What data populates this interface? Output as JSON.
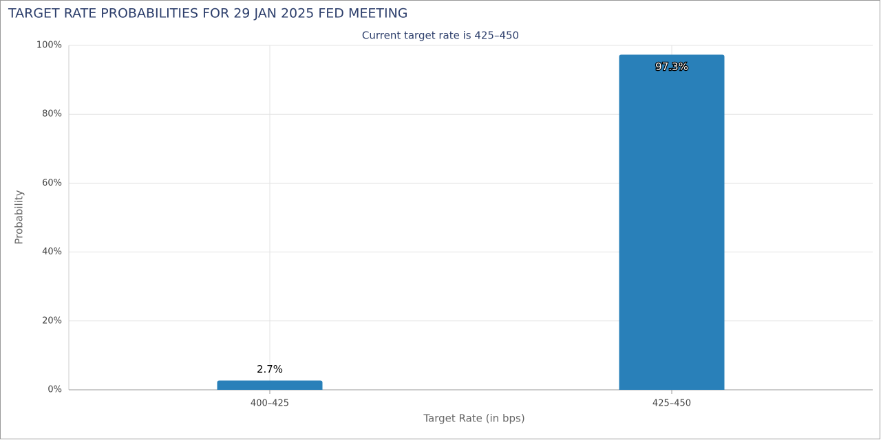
{
  "chart_data": {
    "type": "bar",
    "title": "TARGET RATE PROBABILITIES FOR 29 JAN 2025 FED MEETING",
    "subtitle": "Current target rate is 425–450",
    "x_label": "Target Rate (in bps)",
    "y_label": "Probability",
    "categories": [
      "400–425",
      "425–450"
    ],
    "values": [
      2.7,
      97.3
    ],
    "value_labels": [
      "2.7%",
      "97.3%"
    ],
    "color": "#2980b9",
    "ylim": [
      0,
      100
    ],
    "yticks": [
      {
        "value": 0,
        "label": "0%"
      },
      {
        "value": 20,
        "label": "20%"
      },
      {
        "value": 40,
        "label": "40%"
      },
      {
        "value": 60,
        "label": "60%"
      },
      {
        "value": 80,
        "label": "80%"
      },
      {
        "value": 100,
        "label": "100%"
      }
    ],
    "grid": true
  }
}
